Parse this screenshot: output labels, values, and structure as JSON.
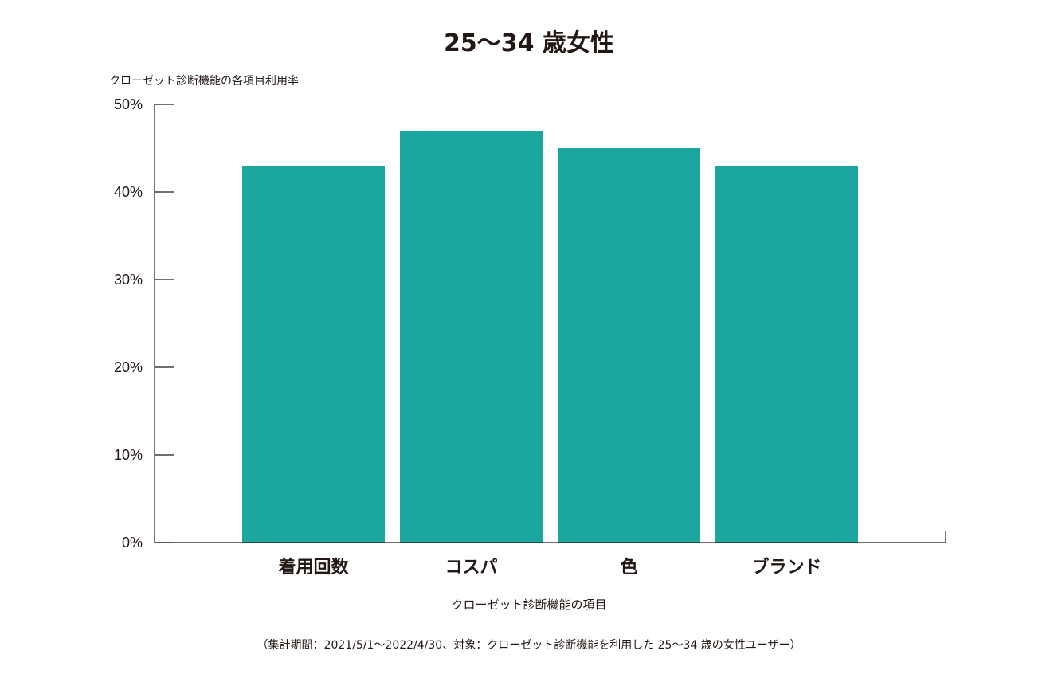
{
  "chart_data": {
    "type": "bar",
    "title": "25～34 歳女性",
    "ylabel": "クローゼット診断機能の各項目利用率",
    "xlabel": "クローゼット診断機能の項目",
    "categories": [
      "着用回数",
      "コスパ",
      "色",
      "ブランド"
    ],
    "values": [
      43,
      47,
      45,
      43
    ],
    "ylim": [
      0,
      50
    ],
    "yticks": [
      0,
      10,
      20,
      30,
      40,
      50
    ],
    "ytick_labels": [
      "0%",
      "10%",
      "20%",
      "30%",
      "40%",
      "50%"
    ],
    "grid": false,
    "bar_color": "#1ba6a0",
    "text_color": "#231815",
    "note": "（集計期間：2021/5/1～2022/4/30、対象：クローゼット診断機能を利用した 25～34 歳の女性ユーザー）"
  }
}
